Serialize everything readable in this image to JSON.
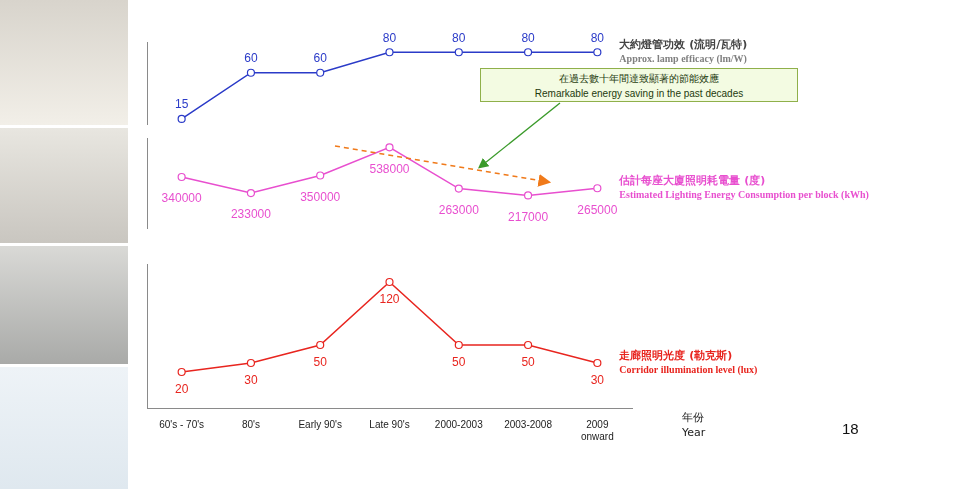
{
  "slide_number": 18,
  "chart_data": [
    {
      "type": "line",
      "categories": [
        "60's - 70's",
        "80's",
        "Early 90's",
        "Late 90's",
        "2000-2003",
        "2003-2008",
        "2009\nonward"
      ],
      "series": [
        {
          "name": "大約燈管功效 (流明/瓦特)\nApprox. lamp efficacy (lm/W)",
          "color": "#2b3bc8",
          "marker": "circle",
          "values": [
            15,
            60,
            60,
            80,
            80,
            80,
            80
          ]
        }
      ],
      "ylim": [
        10,
        90
      ],
      "grid": false,
      "data_labels": true,
      "tick_labels": false
    },
    {
      "type": "line",
      "categories": [
        "60's - 70's",
        "80's",
        "Early 90's",
        "Late 90's",
        "2000-2003",
        "2003-2008",
        "2009\nonward"
      ],
      "series": [
        {
          "name": "估計每座大廈照明耗電量 (度)\nEstimated Lighting Energy Consumption per block (kWh)",
          "color": "#e84fcf",
          "marker": "circle",
          "values": [
            340000,
            233000,
            350000,
            538000,
            263000,
            217000,
            265000
          ]
        }
      ],
      "annotations": [
        {
          "text": "在過去數十年間達致顯著的節能效應\nRemarkable energy saving in the past decades"
        }
      ],
      "ylim": [
        0,
        600000
      ],
      "grid": false,
      "data_labels": true,
      "tick_labels": false
    },
    {
      "type": "line",
      "categories": [
        "60's - 70's",
        "80's",
        "Early 90's",
        "Late 90's",
        "2000-2003",
        "2003-2008",
        "2009\nonward"
      ],
      "series": [
        {
          "name": "走廊照明光度 (勒克斯)\nCorridor illumination level (lux)",
          "color": "#e8251f",
          "marker": "circle",
          "values": [
            20,
            30,
            50,
            120,
            50,
            50,
            30
          ]
        }
      ],
      "x_label": "年份\nYear",
      "ylim": [
        -20,
        140
      ],
      "grid": false,
      "data_labels": true,
      "tick_labels": "x"
    }
  ]
}
